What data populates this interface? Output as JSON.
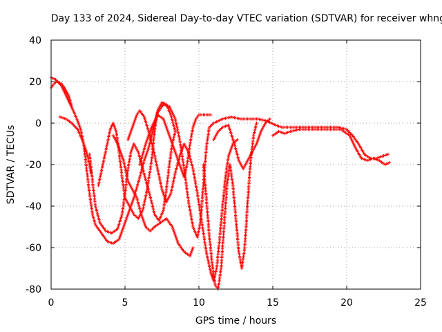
{
  "chart_data": {
    "type": "scatter",
    "title": "Day 133 of 2024, Sidereal Day-to-day VTEC variation (SDTVAR) for receiver whng",
    "xlabel": "GPS time / hours",
    "ylabel": "SDTVAR / TECUs",
    "xlim": [
      0,
      25
    ],
    "ylim": [
      -80,
      40
    ],
    "xticks": [
      0,
      5,
      10,
      15,
      20,
      25
    ],
    "yticks": [
      -80,
      -60,
      -40,
      -20,
      0,
      20,
      40
    ],
    "grid": true,
    "marker": "+",
    "color": "#ff0000",
    "series": [
      {
        "name": "main track",
        "points": [
          [
            0,
            22
          ],
          [
            0.3,
            21
          ],
          [
            0.7,
            18
          ],
          [
            1.1,
            12
          ],
          [
            1.5,
            6
          ],
          [
            1.8,
            1
          ],
          [
            2.0,
            -3
          ],
          [
            2.2,
            -10
          ],
          [
            2.4,
            -22
          ],
          [
            2.6,
            -34
          ],
          [
            2.8,
            -44
          ],
          [
            3.0,
            -49
          ],
          [
            3.4,
            -53
          ],
          [
            3.8,
            -57
          ],
          [
            4.2,
            -58
          ],
          [
            4.6,
            -56
          ],
          [
            4.9,
            -50
          ],
          [
            5.2,
            -44
          ],
          [
            5.6,
            -36
          ],
          [
            6.0,
            -26
          ],
          [
            6.3,
            -18
          ],
          [
            6.6,
            -12
          ],
          [
            6.9,
            -3
          ],
          [
            7.2,
            5
          ],
          [
            7.6,
            9
          ],
          [
            8.0,
            8
          ],
          [
            8.4,
            2
          ],
          [
            8.7,
            -8
          ],
          [
            9.0,
            -22
          ],
          [
            9.3,
            -38
          ],
          [
            9.6,
            -50
          ],
          [
            9.9,
            -55
          ],
          [
            10.1,
            -48
          ],
          [
            10.3,
            -30
          ],
          [
            10.5,
            -12
          ],
          [
            10.7,
            -2
          ],
          [
            11.0,
            0
          ],
          [
            11.6,
            2
          ],
          [
            12.2,
            3
          ],
          [
            12.8,
            2
          ],
          [
            13.4,
            2
          ],
          [
            14.0,
            2
          ],
          [
            14.6,
            1
          ],
          [
            15.2,
            -1
          ],
          [
            15.6,
            -2
          ],
          [
            16.2,
            -2
          ],
          [
            17.0,
            -2
          ],
          [
            17.8,
            -2
          ],
          [
            18.6,
            -2
          ],
          [
            19.4,
            -2
          ],
          [
            20.0,
            -3
          ],
          [
            20.4,
            -6
          ],
          [
            20.8,
            -10
          ],
          [
            21.2,
            -15
          ],
          [
            21.6,
            -17
          ],
          [
            22.0,
            -17
          ],
          [
            22.4,
            -16
          ],
          [
            22.8,
            -15
          ]
        ]
      },
      {
        "name": "upper start",
        "points": [
          [
            0,
            17
          ],
          [
            0.2,
            19
          ],
          [
            0.4,
            20
          ],
          [
            0.7,
            19
          ],
          [
            0.9,
            17
          ],
          [
            1.2,
            13
          ],
          [
            1.4,
            8
          ]
        ]
      },
      {
        "name": "early dip",
        "points": [
          [
            0.6,
            3
          ],
          [
            1.0,
            2
          ],
          [
            1.4,
            0
          ],
          [
            1.8,
            -3
          ],
          [
            2.1,
            -8
          ],
          [
            2.4,
            -14
          ],
          [
            2.6,
            -20
          ],
          [
            2.7,
            -24
          ]
        ]
      },
      {
        "name": "loop a",
        "points": [
          [
            2.6,
            -15
          ],
          [
            2.8,
            -28
          ],
          [
            3.0,
            -40
          ],
          [
            3.3,
            -48
          ],
          [
            3.7,
            -52
          ],
          [
            4.1,
            -53
          ],
          [
            4.5,
            -51
          ],
          [
            4.8,
            -44
          ],
          [
            5.0,
            -34
          ],
          [
            5.2,
            -22
          ],
          [
            5.4,
            -14
          ],
          [
            5.6,
            -10
          ],
          [
            5.9,
            -14
          ],
          [
            6.2,
            -22
          ],
          [
            6.5,
            -30
          ],
          [
            6.8,
            -38
          ],
          [
            7.0,
            -44
          ],
          [
            7.3,
            -47
          ],
          [
            7.6,
            -42
          ],
          [
            7.8,
            -32
          ],
          [
            8.0,
            -20
          ],
          [
            8.2,
            -10
          ],
          [
            8.4,
            -4
          ]
        ]
      },
      {
        "name": "loop b",
        "points": [
          [
            3.2,
            -30
          ],
          [
            3.5,
            -20
          ],
          [
            3.8,
            -10
          ],
          [
            4.0,
            -3
          ],
          [
            4.2,
            0
          ],
          [
            4.4,
            -4
          ],
          [
            4.6,
            -14
          ],
          [
            4.8,
            -26
          ],
          [
            5.0,
            -36
          ],
          [
            5.3,
            -40
          ],
          [
            5.6,
            -44
          ],
          [
            5.9,
            -46
          ],
          [
            6.2,
            -42
          ],
          [
            6.5,
            -32
          ],
          [
            6.8,
            -18
          ],
          [
            7.0,
            -4
          ],
          [
            7.2,
            6
          ],
          [
            7.5,
            10
          ],
          [
            7.8,
            9
          ],
          [
            8.1,
            4
          ],
          [
            8.4,
            -4
          ]
        ]
      },
      {
        "name": "loop c",
        "points": [
          [
            4.2,
            -6
          ],
          [
            4.5,
            -10
          ],
          [
            4.9,
            -18
          ],
          [
            5.2,
            -28
          ],
          [
            5.5,
            -32
          ],
          [
            5.8,
            -36
          ],
          [
            6.1,
            -44
          ],
          [
            6.4,
            -50
          ],
          [
            6.7,
            -52
          ],
          [
            7.0,
            -50
          ],
          [
            7.4,
            -48
          ],
          [
            7.8,
            -46
          ],
          [
            8.2,
            -50
          ],
          [
            8.6,
            -58
          ],
          [
            9.0,
            -62
          ],
          [
            9.4,
            -64
          ],
          [
            9.6,
            -60
          ]
        ]
      },
      {
        "name": "loop d",
        "points": [
          [
            5.2,
            -8
          ],
          [
            5.5,
            -2
          ],
          [
            5.8,
            4
          ],
          [
            6.0,
            6
          ],
          [
            6.3,
            3
          ],
          [
            6.6,
            -4
          ],
          [
            6.9,
            -12
          ],
          [
            7.2,
            -22
          ],
          [
            7.5,
            -32
          ],
          [
            7.8,
            -38
          ],
          [
            8.1,
            -34
          ],
          [
            8.4,
            -24
          ],
          [
            8.7,
            -16
          ],
          [
            9.0,
            -10
          ],
          [
            9.3,
            -14
          ],
          [
            9.6,
            -22
          ],
          [
            9.9,
            -34
          ],
          [
            10.2,
            -48
          ],
          [
            10.5,
            -62
          ],
          [
            10.8,
            -72
          ],
          [
            11.0,
            -76
          ],
          [
            11.2,
            -70
          ],
          [
            11.4,
            -56
          ],
          [
            11.6,
            -40
          ],
          [
            11.8,
            -26
          ],
          [
            12.0,
            -16
          ],
          [
            12.3,
            -10
          ],
          [
            12.6,
            -8
          ]
        ]
      },
      {
        "name": "loop e",
        "points": [
          [
            6.0,
            -20
          ],
          [
            6.4,
            -10
          ],
          [
            6.8,
            -2
          ],
          [
            7.2,
            4
          ],
          [
            7.6,
            2
          ],
          [
            8.0,
            -6
          ],
          [
            8.3,
            -12
          ],
          [
            8.6,
            -18
          ],
          [
            8.8,
            -22
          ],
          [
            9.0,
            -26
          ],
          [
            9.2,
            -20
          ],
          [
            9.4,
            -10
          ],
          [
            9.6,
            -2
          ],
          [
            9.8,
            2
          ],
          [
            10.0,
            4
          ],
          [
            10.4,
            4
          ],
          [
            10.8,
            4
          ]
        ]
      },
      {
        "name": "deep dips",
        "points": [
          [
            10.3,
            -20
          ],
          [
            10.5,
            -36
          ],
          [
            10.7,
            -54
          ],
          [
            10.9,
            -68
          ],
          [
            11.1,
            -78
          ],
          [
            11.3,
            -80
          ],
          [
            11.5,
            -70
          ],
          [
            11.7,
            -50
          ],
          [
            11.9,
            -30
          ],
          [
            12.1,
            -20
          ],
          [
            12.3,
            -30
          ],
          [
            12.5,
            -46
          ],
          [
            12.7,
            -62
          ],
          [
            12.9,
            -70
          ],
          [
            13.1,
            -60
          ],
          [
            13.3,
            -38
          ],
          [
            13.5,
            -18
          ],
          [
            13.7,
            -6
          ],
          [
            13.9,
            0
          ]
        ]
      },
      {
        "name": "right loop",
        "points": [
          [
            11.0,
            -8
          ],
          [
            11.3,
            -4
          ],
          [
            11.6,
            -2
          ],
          [
            12.0,
            -1
          ],
          [
            12.4,
            -10
          ],
          [
            12.7,
            -18
          ],
          [
            13.0,
            -22
          ],
          [
            13.3,
            -18
          ],
          [
            13.6,
            -14
          ],
          [
            13.9,
            -10
          ],
          [
            14.2,
            -4
          ],
          [
            14.5,
            0
          ],
          [
            14.8,
            2
          ]
        ]
      },
      {
        "name": "late lower",
        "points": [
          [
            15.0,
            -6
          ],
          [
            15.4,
            -4
          ],
          [
            15.8,
            -5
          ],
          [
            16.2,
            -4
          ],
          [
            16.8,
            -3
          ],
          [
            17.4,
            -3
          ],
          [
            18.0,
            -3
          ],
          [
            18.8,
            -3
          ],
          [
            19.6,
            -3
          ],
          [
            20.2,
            -6
          ],
          [
            20.6,
            -12
          ],
          [
            21.0,
            -17
          ],
          [
            21.4,
            -18
          ],
          [
            21.8,
            -17
          ],
          [
            22.2,
            -18
          ],
          [
            22.6,
            -20
          ],
          [
            22.9,
            -19
          ]
        ]
      }
    ]
  }
}
